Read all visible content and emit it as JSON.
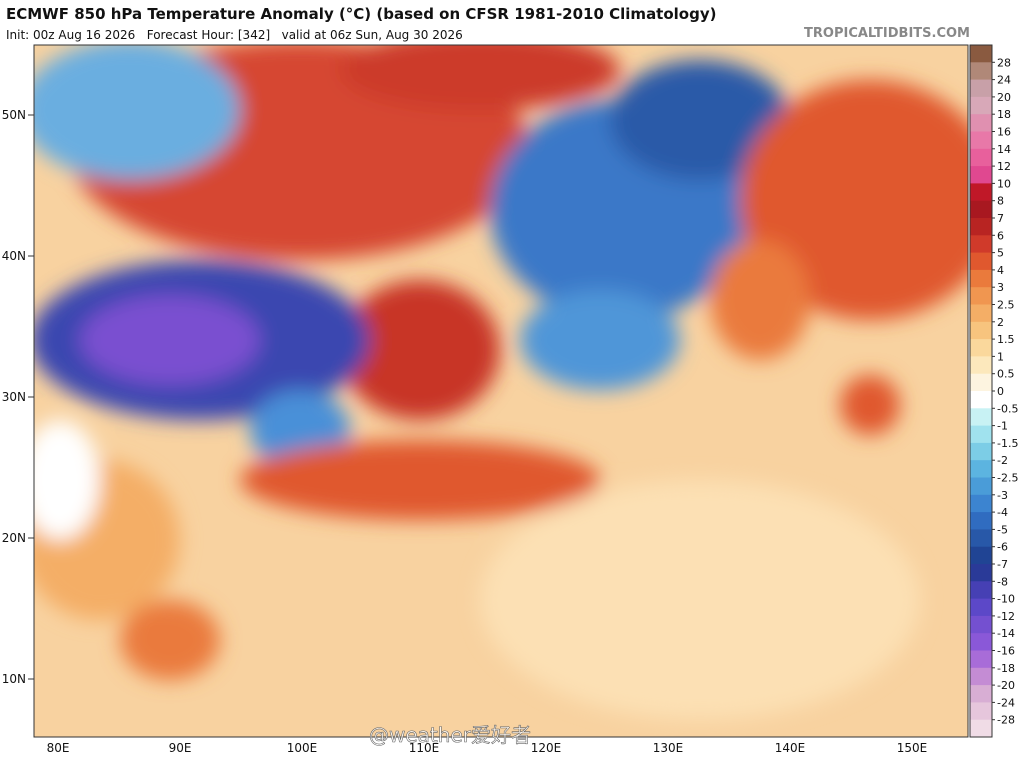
{
  "header": {
    "title": "ECMWF 850 hPa Temperature Anomaly (°C) (based on CFSR 1981-2010 Climatology)",
    "subtitle": "Init: 00z Aug 16 2026   Forecast Hour: [342]   valid at 06z Sun, Aug 30 2026",
    "site": "TROPICALTIDBITS.COM"
  },
  "map": {
    "lat_labels": [
      "50N",
      "40N",
      "30N",
      "20N",
      "10N"
    ],
    "lon_labels": [
      "80E",
      "90E",
      "100E",
      "110E",
      "120E",
      "130E",
      "140E",
      "150E"
    ],
    "watermark": "@weather爱好者"
  },
  "colorbar": {
    "labels": [
      28,
      24,
      20,
      18,
      16,
      14,
      12,
      10,
      8,
      7,
      6,
      5,
      4,
      3,
      2.5,
      2,
      1.5,
      1,
      0.5,
      0,
      -0.5,
      -1,
      -1.5,
      -2,
      -2.5,
      -3,
      -4,
      -5,
      -6,
      -7,
      -8,
      -10,
      -12,
      -14,
      -16,
      -18,
      -20,
      -24,
      -28
    ],
    "colors": [
      "#8a5a40",
      "#b08878",
      "#c8a0a8",
      "#d8a8b8",
      "#e090b0",
      "#e878a8",
      "#e8609c",
      "#e04890",
      "#c01828",
      "#a81820",
      "#b82422",
      "#d03a2a",
      "#e0582e",
      "#ea7a3c",
      "#f09650",
      "#f4ae66",
      "#f7c47e",
      "#fad89c",
      "#fce8bc",
      "#fdf4e0",
      "#ffffff",
      "#c8f2f4",
      "#a0e2ee",
      "#7ccde6",
      "#5cb4e0",
      "#4a9cd8",
      "#3c84d0",
      "#306cc0",
      "#2858a8",
      "#204494",
      "#2a3a98",
      "#4640b4",
      "#5c48c8",
      "#7450d0",
      "#8a58d8",
      "#a86cd8",
      "#c48cd4",
      "#d8aed4",
      "#e6c6dc",
      "#f0dce6"
    ]
  }
}
